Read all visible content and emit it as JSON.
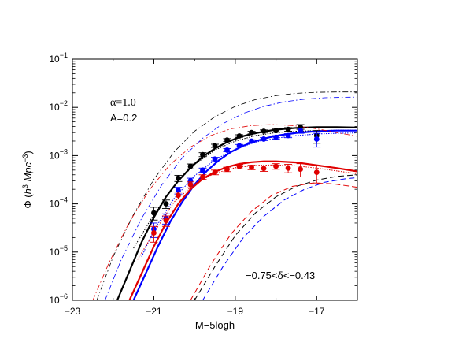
{
  "chart_data": {
    "type": "scatter",
    "xlabel": "M−5logh",
    "ylabel_parts": {
      "phi": "Φ (",
      "h": "h",
      "h_exp": "3",
      "mpc": " Mpc",
      "mpc_exp": "−3",
      "close": ")"
    },
    "xlim": [
      -23,
      -16
    ],
    "ylim_log10": [
      -6,
      -1
    ],
    "x_ticks": [
      -23,
      -21,
      -19,
      -17
    ],
    "x_tick_labels": [
      "−23",
      "−21",
      "−19",
      "−17"
    ],
    "y_ticks_log10": [
      -6,
      -5,
      -4,
      -3,
      -2,
      -1
    ],
    "y_tick_labels": [
      {
        "base": "10",
        "exp": "−6"
      },
      {
        "base": "10",
        "exp": "−5"
      },
      {
        "base": "10",
        "exp": "−4"
      },
      {
        "base": "10",
        "exp": "−3"
      },
      {
        "base": "10",
        "exp": "−2"
      },
      {
        "base": "10",
        "exp": "−1"
      }
    ],
    "log_y": true,
    "grid": false,
    "annotations": {
      "alpha": "α=1.0",
      "A": "A=0.2",
      "delta": "−0.75<δ<−0.43"
    },
    "colors": {
      "black": "#000000",
      "blue": "#0000ff",
      "red": "#e00000"
    },
    "series": [
      {
        "color": "#000000",
        "points": [
          {
            "x": -21.0,
            "y": 6.5e-05,
            "lo": 4.6e-05,
            "hi": 8.5e-05
          },
          {
            "x": -20.7,
            "y": 0.0001,
            "lo": 8e-05,
            "hi": 0.00012
          },
          {
            "x": -20.4,
            "y": 0.00034,
            "lo": 0.00029,
            "hi": 0.00039
          },
          {
            "x": -20.1,
            "y": 0.0006,
            "lo": 0.00053,
            "hi": 0.00067
          },
          {
            "x": -19.8,
            "y": 0.00105,
            "lo": 0.00095,
            "hi": 0.00115
          },
          {
            "x": -19.5,
            "y": 0.0016,
            "lo": 0.00148,
            "hi": 0.00172
          },
          {
            "x": -19.2,
            "y": 0.0021,
            "lo": 0.00195,
            "hi": 0.00225
          },
          {
            "x": -18.9,
            "y": 0.00255,
            "lo": 0.0024,
            "hi": 0.0027
          },
          {
            "x": -18.6,
            "y": 0.003,
            "lo": 0.00282,
            "hi": 0.00318
          },
          {
            "x": -18.3,
            "y": 0.0032,
            "lo": 0.003,
            "hi": 0.0034
          },
          {
            "x": -18.0,
            "y": 0.0033,
            "lo": 0.00305,
            "hi": 0.00355
          },
          {
            "x": -17.7,
            "y": 0.0035,
            "lo": 0.0032,
            "hi": 0.0038
          },
          {
            "x": -17.4,
            "y": 0.0039,
            "lo": 0.0035,
            "hi": 0.0044
          },
          {
            "x": -17.0,
            "y": 0.0026,
            "lo": 0.0018,
            "hi": 0.0033
          }
        ],
        "model": {
          "x": [
            -21.9,
            -21.6,
            -21.3,
            -21.0,
            -20.7,
            -20.4,
            -20.1,
            -19.8,
            -19.5,
            -19.2,
            -18.9,
            -18.6,
            -18.3,
            -18.0,
            -17.5,
            -17.0,
            -16.5,
            -16.0
          ],
          "y": [
            1e-06,
            4e-06,
            1.6e-05,
            5.2e-05,
            0.00014,
            0.0003,
            0.00056,
            0.00095,
            0.0014,
            0.0019,
            0.0024,
            0.0028,
            0.00315,
            0.00345,
            0.00375,
            0.00388,
            0.00388,
            0.0038
          ]
        },
        "model_b": {
          "x": [
            -21.5,
            -21.0,
            -20.5,
            -20.0,
            -19.5,
            -19.0,
            -18.5,
            -18.0,
            -17.5,
            -17.0,
            -16.5,
            -16.0
          ],
          "y": [
            1.2e-05,
            6e-05,
            0.00024,
            0.00065,
            0.0013,
            0.002,
            0.0026,
            0.003,
            0.0032,
            0.0033,
            0.00335,
            0.00335
          ]
        },
        "dashed": {
          "x": [
            -20.0,
            -19.5,
            -19.0,
            -18.5,
            -18.0,
            -17.5,
            -17.0,
            -16.5,
            -16.0
          ],
          "y": [
            1e-06,
            5e-06,
            2.2e-05,
            6.5e-05,
            0.00014,
            0.00023,
            0.00031,
            0.00037,
            0.0004
          ]
        },
        "dashdot": {
          "x": [
            -22.4,
            -22.0,
            -21.5,
            -21.0,
            -20.5,
            -20.0,
            -19.5,
            -19.0,
            -18.5,
            -18.0,
            -17.5,
            -17.0,
            -16.5,
            -16.0
          ],
          "y": [
            1e-06,
            8e-06,
            6e-05,
            0.00032,
            0.0012,
            0.0032,
            0.0064,
            0.0105,
            0.0145,
            0.0175,
            0.0195,
            0.0205,
            0.0208,
            0.0208
          ]
        }
      },
      {
        "color": "#0000ff",
        "points": [
          {
            "x": -21.0,
            "y": 3e-05,
            "lo": 2e-05,
            "hi": 4e-05
          },
          {
            "x": -20.7,
            "y": 5e-05,
            "lo": 3.8e-05,
            "hi": 6.2e-05
          },
          {
            "x": -20.4,
            "y": 0.00019,
            "lo": 0.00016,
            "hi": 0.00022
          },
          {
            "x": -20.1,
            "y": 0.0003,
            "lo": 0.00026,
            "hi": 0.00034
          },
          {
            "x": -19.8,
            "y": 0.0005,
            "lo": 0.00045,
            "hi": 0.00055
          },
          {
            "x": -19.5,
            "y": 0.00085,
            "lo": 0.00078,
            "hi": 0.00092
          },
          {
            "x": -19.2,
            "y": 0.0013,
            "lo": 0.0012,
            "hi": 0.0014
          },
          {
            "x": -18.9,
            "y": 0.0016,
            "lo": 0.0015,
            "hi": 0.0017
          },
          {
            "x": -18.6,
            "y": 0.002,
            "lo": 0.00187,
            "hi": 0.00213
          },
          {
            "x": -18.3,
            "y": 0.0022,
            "lo": 0.00205,
            "hi": 0.00235
          },
          {
            "x": -18.0,
            "y": 0.0024,
            "lo": 0.0022,
            "hi": 0.0026
          },
          {
            "x": -17.7,
            "y": 0.0026,
            "lo": 0.00235,
            "hi": 0.00285
          },
          {
            "x": -17.4,
            "y": 0.0033,
            "lo": 0.0029,
            "hi": 0.0037
          },
          {
            "x": -17.0,
            "y": 0.0022,
            "lo": 0.0015,
            "hi": 0.0029
          }
        ],
        "model": {
          "x": [
            -21.5,
            -21.2,
            -20.9,
            -20.6,
            -20.3,
            -20.0,
            -19.7,
            -19.4,
            -19.1,
            -18.8,
            -18.5,
            -18.2,
            -17.9,
            -17.5,
            -17.0,
            -16.5,
            -16.0
          ],
          "y": [
            1e-06,
            3.6e-06,
            1.3e-05,
            4.2e-05,
            0.00011,
            0.00025,
            0.00048,
            0.0008,
            0.0012,
            0.0016,
            0.002,
            0.00235,
            0.00265,
            0.00295,
            0.0032,
            0.0033,
            0.0033
          ]
        },
        "model_b": {
          "x": [
            -21.3,
            -21.0,
            -20.5,
            -20.0,
            -19.5,
            -19.0,
            -18.5,
            -18.0,
            -17.5,
            -17.0,
            -16.5,
            -16.0
          ],
          "y": [
            8e-06,
            2.8e-05,
            0.00013,
            0.00038,
            0.00082,
            0.00135,
            0.0019,
            0.0023,
            0.0026,
            0.0028,
            0.0029,
            0.00295
          ]
        },
        "dashed": {
          "x": [
            -19.8,
            -19.3,
            -18.8,
            -18.3,
            -17.8,
            -17.3,
            -16.8,
            -16.3,
            -16.0
          ],
          "y": [
            1e-06,
            5e-06,
            2e-05,
            5.5e-05,
            0.00012,
            0.0002,
            0.00028,
            0.00033,
            0.00035
          ]
        },
        "dashdot": {
          "x": [
            -22.2,
            -21.8,
            -21.3,
            -20.8,
            -20.3,
            -19.8,
            -19.3,
            -18.8,
            -18.3,
            -17.8,
            -17.3,
            -16.8,
            -16.3,
            -16.0
          ],
          "y": [
            1e-06,
            7e-06,
            5e-05,
            0.00025,
            0.0009,
            0.0023,
            0.0046,
            0.0075,
            0.0105,
            0.013,
            0.0148,
            0.0158,
            0.0162,
            0.0163
          ]
        }
      },
      {
        "color": "#e00000",
        "points": [
          {
            "x": -21.0,
            "y": 2.5e-05,
            "lo": 1.6e-05,
            "hi": 3.4e-05
          },
          {
            "x": -20.7,
            "y": 4.5e-05,
            "lo": 3.4e-05,
            "hi": 5.6e-05
          },
          {
            "x": -20.4,
            "y": 0.00015,
            "lo": 0.000125,
            "hi": 0.000175
          },
          {
            "x": -20.1,
            "y": 0.00025,
            "lo": 0.000215,
            "hi": 0.000285
          },
          {
            "x": -19.8,
            "y": 0.00036,
            "lo": 0.00032,
            "hi": 0.0004
          },
          {
            "x": -19.5,
            "y": 0.00045,
            "lo": 0.0004,
            "hi": 0.0005
          },
          {
            "x": -19.2,
            "y": 0.00052,
            "lo": 0.000465,
            "hi": 0.000575
          },
          {
            "x": -18.9,
            "y": 0.00059,
            "lo": 0.00053,
            "hi": 0.00065
          },
          {
            "x": -18.6,
            "y": 0.00057,
            "lo": 0.00051,
            "hi": 0.00063
          },
          {
            "x": -18.3,
            "y": 0.00054,
            "lo": 0.00047,
            "hi": 0.00061
          },
          {
            "x": -18.0,
            "y": 0.0006,
            "lo": 0.00052,
            "hi": 0.00068
          },
          {
            "x": -17.7,
            "y": 0.00055,
            "lo": 0.00044,
            "hi": 0.00066
          },
          {
            "x": -17.4,
            "y": 0.00052,
            "lo": 0.00036,
            "hi": 0.00068
          },
          {
            "x": -17.0,
            "y": 0.00045,
            "lo": 0.00027,
            "hi": 0.00063
          }
        ],
        "model": {
          "x": [
            -21.6,
            -21.3,
            -21.0,
            -20.7,
            -20.4,
            -20.1,
            -19.8,
            -19.5,
            -19.2,
            -18.9,
            -18.6,
            -18.3,
            -18.0,
            -17.5,
            -17.0,
            -16.5,
            -16.0
          ],
          "y": [
            1e-06,
            3.6e-06,
            1.3e-05,
            4e-05,
            0.0001,
            0.0002,
            0.00033,
            0.00046,
            0.00058,
            0.00067,
            0.00073,
            0.00076,
            0.00076,
            0.00072,
            0.00063,
            0.00055,
            0.00047
          ]
        },
        "model_b": {
          "x": [
            -21.4,
            -21.0,
            -20.5,
            -20.0,
            -19.5,
            -19.0,
            -18.5,
            -18.0,
            -17.5,
            -17.0,
            -16.5,
            -16.0
          ],
          "y": [
            7e-06,
            2.5e-05,
            0.00011,
            0.00026,
            0.00043,
            0.00056,
            0.00063,
            0.00064,
            0.00061,
            0.00055,
            0.00048,
            0.00042
          ]
        },
        "dashed": {
          "x": [
            -20.1,
            -19.6,
            -19.1,
            -18.6,
            -18.1,
            -17.6,
            -17.1,
            -16.6,
            -16.0
          ],
          "y": [
            1e-06,
            5.5e-06,
            2.4e-05,
            7e-05,
            0.00015,
            0.00023,
            0.00027,
            0.00026,
            0.00022
          ]
        },
        "dashdot": {
          "x": [
            -22.5,
            -22.1,
            -21.6,
            -21.1,
            -20.6,
            -20.1,
            -19.6,
            -19.1,
            -18.6,
            -18.1,
            -17.6,
            -17.1,
            -16.6,
            -16.0
          ],
          "y": [
            1e-06,
            6e-06,
            4.2e-05,
            0.0002,
            0.00065,
            0.0015,
            0.0026,
            0.0036,
            0.0042,
            0.0044,
            0.0042,
            0.0037,
            0.0031,
            0.0025
          ]
        }
      }
    ]
  }
}
